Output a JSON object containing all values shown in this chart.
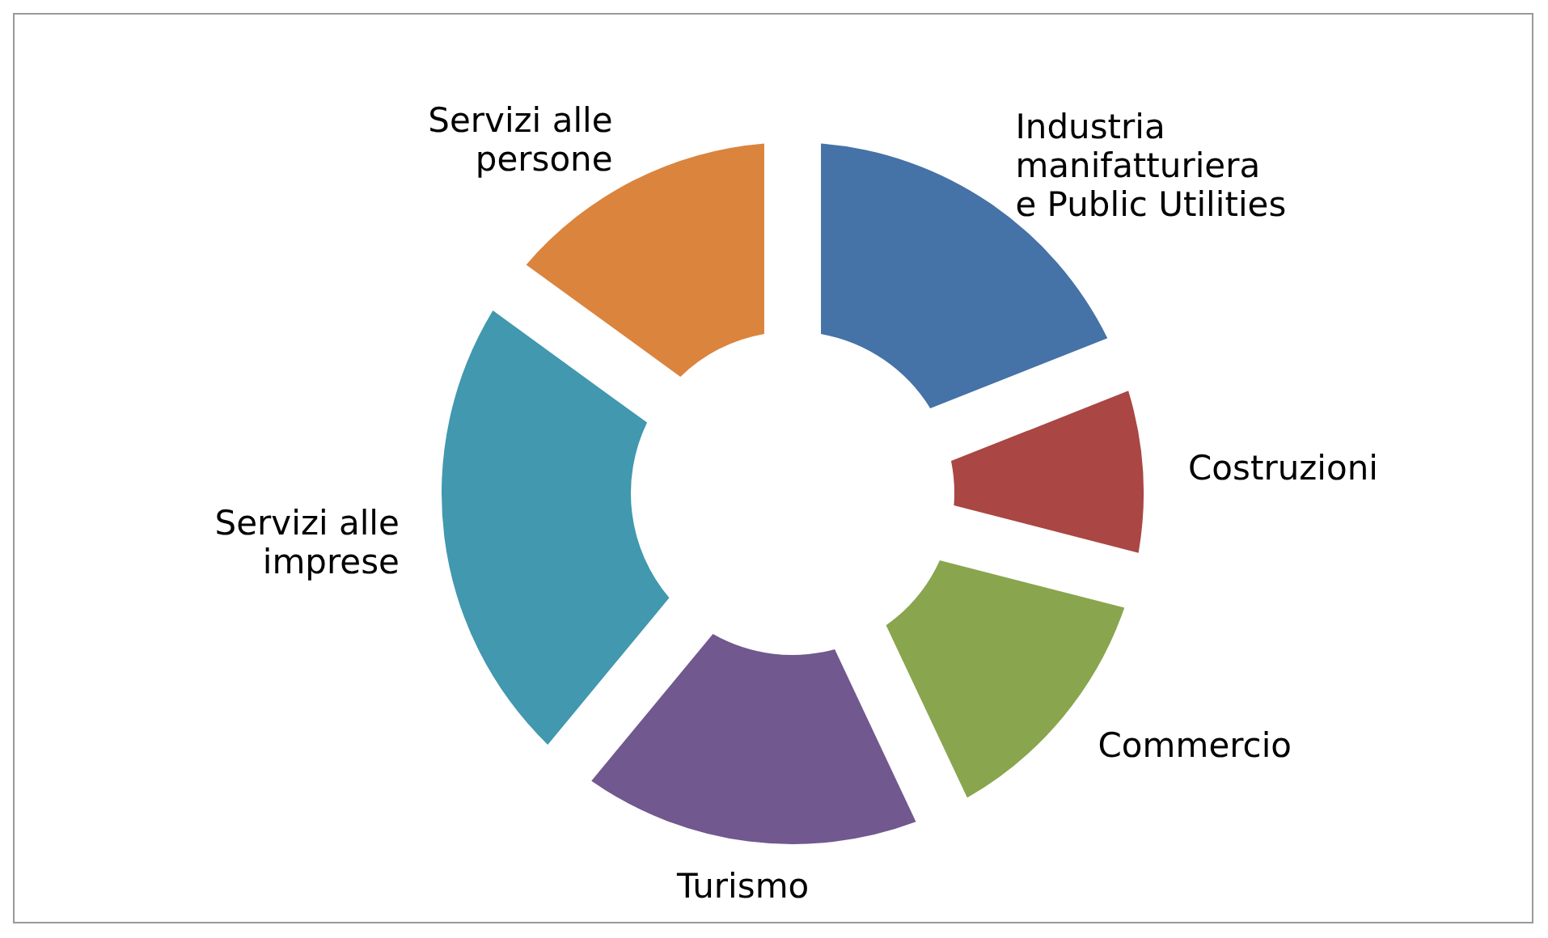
{
  "chart_data": {
    "type": "donut",
    "categories": [
      "Industria\nmanifatturiera\ne Public Utilities",
      "Costruzioni",
      "Commercio",
      "Turismo",
      "Servizi alle\nimprese",
      "Servizi alle\npersone"
    ],
    "values": [
      19,
      10,
      14,
      18,
      24,
      15
    ],
    "colors": [
      "#4572a7",
      "#aa4643",
      "#89a54e",
      "#71588f",
      "#4198af",
      "#db843d"
    ]
  }
}
